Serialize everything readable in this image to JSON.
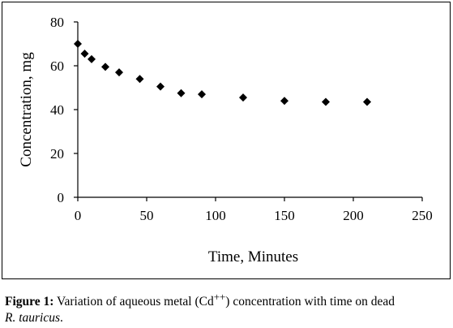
{
  "chart_data": {
    "type": "scatter",
    "xlabel": "Time, Minutes",
    "ylabel": "Concentration, mg",
    "xlim": [
      0,
      250
    ],
    "ylim": [
      0,
      80
    ],
    "xticks": [
      "0",
      "50",
      "100",
      "150",
      "200",
      "250"
    ],
    "yticks": [
      "0",
      "20",
      "40",
      "60",
      "80"
    ],
    "grid": false,
    "legend": "none",
    "marker": "diamond",
    "marker_color": "#000000",
    "points": [
      {
        "x": 0,
        "y": 70
      },
      {
        "x": 5,
        "y": 65.5
      },
      {
        "x": 10,
        "y": 63
      },
      {
        "x": 20,
        "y": 59.5
      },
      {
        "x": 30,
        "y": 57
      },
      {
        "x": 45,
        "y": 54
      },
      {
        "x": 60,
        "y": 50.5
      },
      {
        "x": 75,
        "y": 47.5
      },
      {
        "x": 90,
        "y": 47
      },
      {
        "x": 120,
        "y": 45.5
      },
      {
        "x": 150,
        "y": 44
      },
      {
        "x": 180,
        "y": 43.5
      },
      {
        "x": 210,
        "y": 43.5
      }
    ]
  },
  "caption": {
    "label": "Figure 1:",
    "text_before": " Variation of aqueous metal (Cd",
    "superscript": "++",
    "text_after": ") concentration with time on dead",
    "species": "R. tauricus",
    "end": "."
  }
}
